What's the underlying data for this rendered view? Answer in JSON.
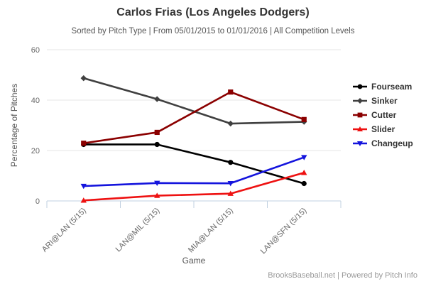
{
  "header": {
    "title": "Carlos Frias (Los Angeles Dodgers)",
    "subtitle": "Sorted by Pitch Type | From 05/01/2015 to 01/01/2016 | All Competition Levels"
  },
  "footer": {
    "credit": "BrooksBaseball.net | Powered by Pitch Info"
  },
  "chart_data": {
    "type": "line",
    "title": "Carlos Frias (Los Angeles Dodgers)",
    "subtitle": "Sorted by Pitch Type | From 05/01/2015 to 01/01/2016 | All Competition Levels",
    "xlabel": "Game",
    "ylabel": "Percentage of Pitches",
    "ylim": [
      0,
      60
    ],
    "yticks": [
      0,
      20,
      40,
      60
    ],
    "grid": true,
    "legend_position": "right",
    "categories": [
      "ARI@LAN (5/15)",
      "LAN@MIL (5/15)",
      "MIA@LAN (5/15)",
      "LAN@SFN (5/15)"
    ],
    "series": [
      {
        "name": "Fourseam",
        "color": "#000000",
        "marker": "circle",
        "values": [
          22.4,
          22.4,
          15.3,
          6.9
        ]
      },
      {
        "name": "Sinker",
        "color": "#404040",
        "marker": "diamond",
        "values": [
          48.7,
          40.4,
          30.7,
          31.4
        ]
      },
      {
        "name": "Cutter",
        "color": "#8B0000",
        "marker": "square",
        "values": [
          22.9,
          27.2,
          43.2,
          32.3
        ]
      },
      {
        "name": "Slider",
        "color": "#EE1111",
        "marker": "triangle-up",
        "values": [
          0.2,
          2.1,
          2.9,
          11.2
        ]
      },
      {
        "name": "Changeup",
        "color": "#1414DD",
        "marker": "triangle-down",
        "values": [
          5.9,
          7.1,
          7.0,
          17.3
        ]
      }
    ],
    "colors": {
      "grid_line": "#E6E6E6",
      "axis_line": "#C0D0E0",
      "tick_label": "#666666",
      "axis_title": "#555555"
    }
  }
}
